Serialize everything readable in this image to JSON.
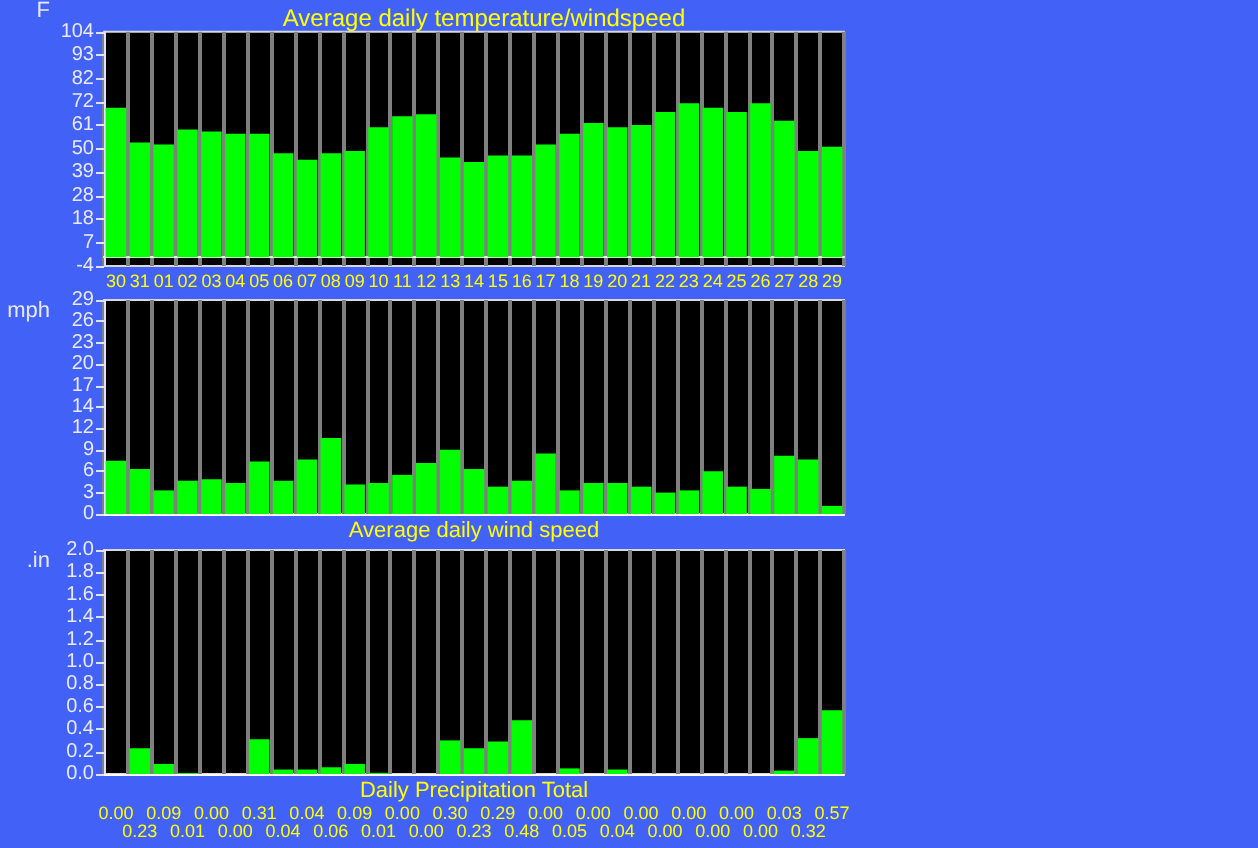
{
  "chart_data": [
    {
      "type": "bar",
      "title": "Average daily temperature/windspeed",
      "ylabel": "F",
      "color": "#00ff00",
      "grid": "x",
      "categories": [
        "30",
        "31",
        "01",
        "02",
        "03",
        "04",
        "05",
        "06",
        "07",
        "08",
        "09",
        "10",
        "11",
        "12",
        "13",
        "14",
        "15",
        "16",
        "17",
        "18",
        "19",
        "20",
        "21",
        "22",
        "23",
        "24",
        "25",
        "26",
        "27",
        "28",
        "29"
      ],
      "values": [
        69,
        53,
        52,
        59,
        58,
        57,
        57,
        48,
        45,
        48,
        49,
        60,
        65,
        66,
        46,
        44,
        47,
        47,
        52,
        57,
        62,
        60,
        61,
        67,
        71,
        69,
        67,
        71,
        63,
        49,
        51
      ],
      "ylim": [
        -4,
        104
      ],
      "yticks": [
        -4,
        {
          "value": 6.8,
          "label": "7"
        },
        {
          "value": 17.6,
          "label": "18"
        },
        {
          "value": 28.4,
          "label": "28"
        },
        {
          "value": 39.2,
          "label": "39"
        },
        50,
        {
          "value": 60.8,
          "label": "61"
        },
        {
          "value": 71.6,
          "label": "72"
        },
        {
          "value": 82.4,
          "label": "82"
        },
        {
          "value": 93.2,
          "label": "93"
        },
        104
      ]
    },
    {
      "type": "bar",
      "ylabel": "mph",
      "xlabel": "Average daily wind speed",
      "color": "#00ff00",
      "grid": "x",
      "tick_labels": "y",
      "categories": [
        "30",
        "31",
        "01",
        "02",
        "03",
        "04",
        "05",
        "06",
        "07",
        "08",
        "09",
        "10",
        "11",
        "12",
        "13",
        "14",
        "15",
        "16",
        "17",
        "18",
        "19",
        "20",
        "21",
        "22",
        "23",
        "24",
        "25",
        "26",
        "27",
        "28",
        "29"
      ],
      "values": [
        7.2,
        6.1,
        3.2,
        4.5,
        4.7,
        4.2,
        7.1,
        4.5,
        7.4,
        10.3,
        4.0,
        4.2,
        5.3,
        6.9,
        8.7,
        6.1,
        3.7,
        4.5,
        8.2,
        3.2,
        4.2,
        4.2,
        3.7,
        2.9,
        3.2,
        5.8,
        3.7,
        3.4,
        7.9,
        7.4,
        1.1
      ],
      "ylim": [
        0,
        29
      ],
      "yticks": [
        0,
        {
          "value": 2.9,
          "label": "3"
        },
        {
          "value": 5.8,
          "label": "6"
        },
        {
          "value": 8.7,
          "label": "9"
        },
        {
          "value": 11.6,
          "label": "12"
        },
        {
          "value": 14.5,
          "label": "14"
        },
        {
          "value": 17.4,
          "label": "17"
        },
        {
          "value": 20.3,
          "label": "20"
        },
        {
          "value": 23.2,
          "label": "23"
        },
        {
          "value": 26.1,
          "label": "26"
        },
        29
      ]
    },
    {
      "type": "bar",
      "ylabel": ".in",
      "xlabel": "Daily Precipitation Total",
      "color": "#00ff00",
      "grid": "x",
      "tick_labels": "y",
      "categories": [
        "30",
        "31",
        "01",
        "02",
        "03",
        "04",
        "05",
        "06",
        "07",
        "08",
        "09",
        "10",
        "11",
        "12",
        "13",
        "14",
        "15",
        "16",
        "17",
        "18",
        "19",
        "20",
        "21",
        "22",
        "23",
        "24",
        "25",
        "26",
        "27",
        "28",
        "29"
      ],
      "values": [
        0,
        0.23,
        0.09,
        0.01,
        0,
        0,
        0.31,
        0.04,
        0.04,
        0.06,
        0.09,
        0.01,
        0,
        0,
        0.3,
        0.23,
        0.29,
        0.48,
        0,
        0.05,
        0,
        0.04,
        0,
        0,
        0,
        0,
        0,
        0,
        0.03,
        0.32,
        0.57
      ],
      "value_labels": [
        "0.00",
        "0.23",
        "0.09",
        "0.01",
        "0.00",
        "0.00",
        "0.31",
        "0.04",
        "0.04",
        "0.06",
        "0.09",
        "0.01",
        "0.00",
        "0.00",
        "0.30",
        "0.23",
        "0.29",
        "0.48",
        "0.00",
        "0.05",
        "0.00",
        "0.04",
        "0.00",
        "0.00",
        "0.00",
        "0.00",
        "0.00",
        "0.00",
        "0.03",
        "0.32",
        "0.57"
      ],
      "ylim": [
        0,
        2
      ],
      "yticks": [
        {
          "value": 0,
          "label": "0.0"
        },
        0.2,
        0.4,
        0.6,
        0.8,
        {
          "value": 1,
          "label": "1.0"
        },
        1.2,
        1.4,
        1.6,
        1.8,
        {
          "value": 2,
          "label": "2.0"
        }
      ]
    }
  ]
}
